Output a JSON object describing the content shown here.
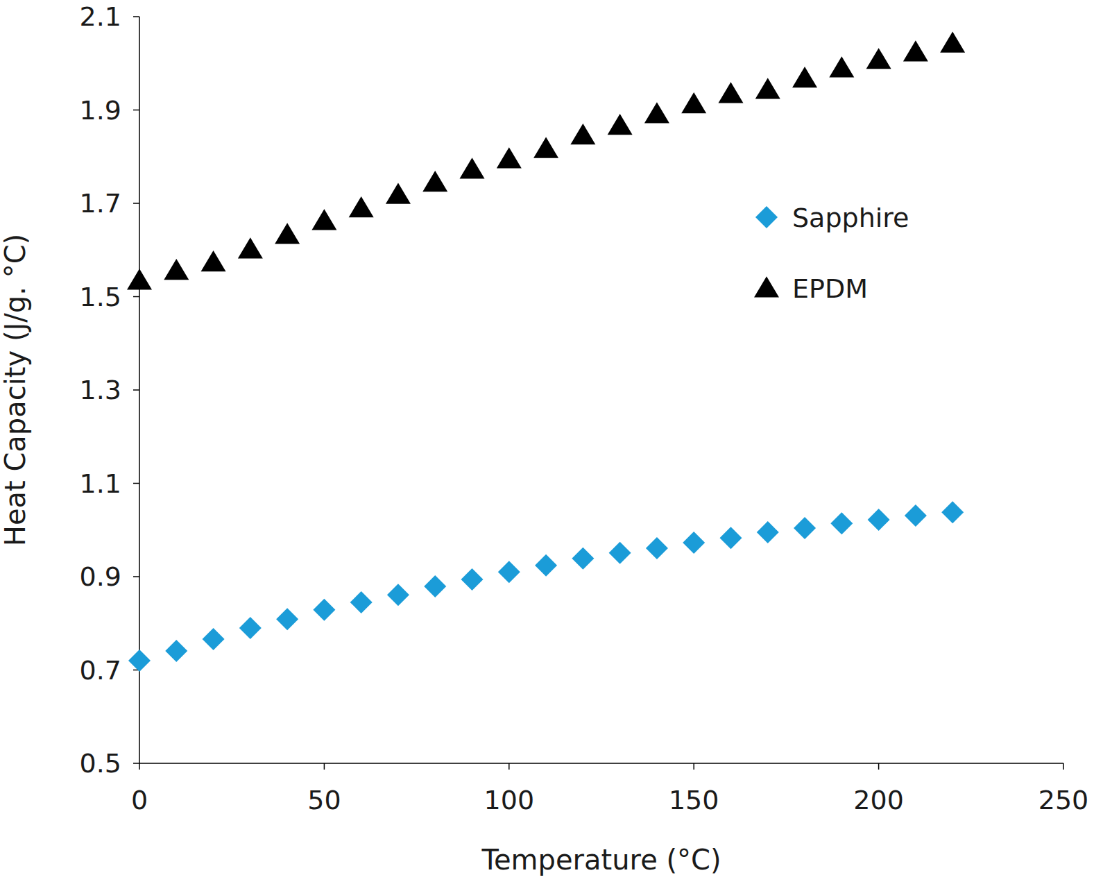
{
  "chart_data": {
    "type": "scatter",
    "x_label": "Temperature (°C)",
    "y_label": "Heat Capacity (J/g. °C)",
    "x": [
      0,
      10,
      20,
      30,
      40,
      50,
      60,
      70,
      80,
      90,
      100,
      110,
      120,
      130,
      140,
      150,
      160,
      170,
      180,
      190,
      200,
      210,
      220
    ],
    "series": [
      {
        "name": "Sapphire",
        "color": "#1b9cd8",
        "marker": "diamond",
        "values": [
          0.72,
          0.741,
          0.766,
          0.79,
          0.809,
          0.829,
          0.845,
          0.861,
          0.879,
          0.894,
          0.91,
          0.924,
          0.939,
          0.951,
          0.961,
          0.973,
          0.983,
          0.995,
          1.004,
          1.014,
          1.022,
          1.031,
          1.038
        ]
      },
      {
        "name": "EPDM",
        "color": "#000000",
        "marker": "triangle",
        "values": [
          1.535,
          1.556,
          1.574,
          1.602,
          1.633,
          1.663,
          1.69,
          1.719,
          1.745,
          1.773,
          1.795,
          1.817,
          1.846,
          1.867,
          1.892,
          1.913,
          1.935,
          1.944,
          1.968,
          1.99,
          2.008,
          2.024,
          2.043
        ]
      }
    ],
    "xlim": [
      0,
      250
    ],
    "xticks": [
      0,
      50,
      100,
      150,
      200,
      250
    ],
    "ylim": [
      0.5,
      2.1
    ],
    "yticks": [
      0.5,
      0.7,
      0.9,
      1.1,
      1.3,
      1.5,
      1.7,
      1.9,
      2.1
    ],
    "grid": false,
    "legend": "right"
  }
}
